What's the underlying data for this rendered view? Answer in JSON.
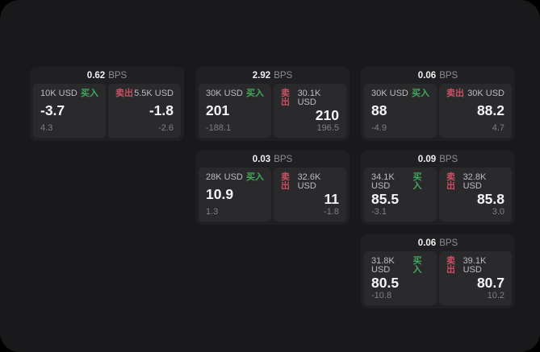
{
  "labels": {
    "bps_unit": "BPS",
    "buy": "买入",
    "sell": "卖出"
  },
  "colors": {
    "buy": "#3fa95c",
    "sell": "#c94f63",
    "surface": "#19191b",
    "card": "#202022",
    "panel": "#2a2a2c"
  },
  "cards": [
    {
      "bps": "0.62",
      "buy": {
        "amount": "10K USD",
        "value": "-3.7",
        "delta": "4.3"
      },
      "sell": {
        "amount": "5.5K USD",
        "value": "-1.8",
        "delta": "-2.6"
      }
    },
    {
      "bps": "2.92",
      "buy": {
        "amount": "30K USD",
        "value": "201",
        "delta": "-188.1"
      },
      "sell": {
        "amount": "30.1K USD",
        "value": "210",
        "delta": "196.5"
      }
    },
    {
      "bps": "0.06",
      "buy": {
        "amount": "30K USD",
        "value": "88",
        "delta": "-4.9"
      },
      "sell": {
        "amount": "30K USD",
        "value": "88.2",
        "delta": "4.7"
      }
    },
    {
      "bps": "0.03",
      "buy": {
        "amount": "28K USD",
        "value": "10.9",
        "delta": "1.3"
      },
      "sell": {
        "amount": "32.6K USD",
        "value": "11",
        "delta": "-1.8"
      }
    },
    {
      "bps": "0.09",
      "buy": {
        "amount": "34.1K USD",
        "value": "85.5",
        "delta": "-3.1"
      },
      "sell": {
        "amount": "32.8K USD",
        "value": "85.8",
        "delta": "3.0"
      }
    },
    {
      "bps": "0.06",
      "buy": {
        "amount": "31.8K USD",
        "value": "80.5",
        "delta": "-10.8"
      },
      "sell": {
        "amount": "39.1K USD",
        "value": "80.7",
        "delta": "10.2"
      }
    }
  ]
}
